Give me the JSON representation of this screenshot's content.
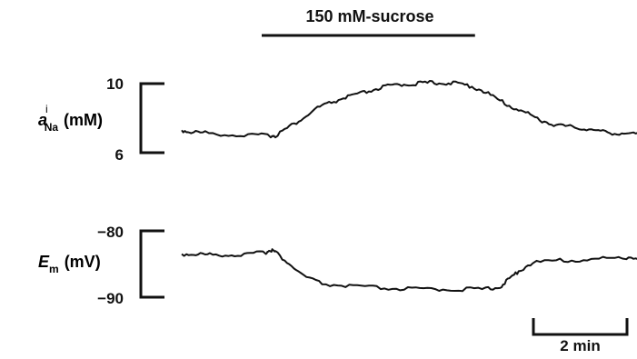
{
  "chart_data": [
    {
      "type": "line",
      "stimulus_label": "150 mM-sucrose",
      "stimulus_window_min": [
        2.0,
        6.5
      ],
      "ylabel": {
        "symbol": "a",
        "superscript": "i",
        "subscript": "Na",
        "unit": "(mM)"
      },
      "ylim": [
        6,
        10
      ],
      "yticks": [
        "10",
        "6"
      ],
      "series": [
        {
          "x": [
            0,
            0.2,
            0.5,
            1.0,
            1.5,
            1.9,
            2.0,
            2.3,
            2.6,
            2.9,
            3.2,
            3.5,
            3.8,
            4.1,
            4.4,
            4.7,
            5.0,
            5.3,
            5.6,
            5.9,
            6.2,
            6.5,
            6.8,
            7.1,
            7.4,
            7.7,
            8.0,
            8.3,
            8.6,
            8.9,
            9.2,
            9.5,
            9.8
          ],
          "y": [
            7.3,
            7.2,
            7.15,
            7.05,
            7.0,
            7.0,
            7.0,
            7.5,
            8.0,
            8.6,
            8.9,
            9.2,
            9.4,
            9.65,
            9.85,
            9.95,
            10.0,
            10.05,
            10.05,
            10.0,
            9.85,
            9.5,
            9.0,
            8.6,
            8.25,
            7.85,
            7.6,
            7.5,
            7.4,
            7.25,
            7.15,
            7.1,
            7.05
          ]
        }
      ]
    },
    {
      "type": "line",
      "ylabel": {
        "symbol": "E",
        "subscript": "m",
        "unit": "(mV)"
      },
      "ylim": [
        -90,
        -80
      ],
      "yticks": [
        "−80",
        "−90"
      ],
      "series": [
        {
          "x": [
            0,
            0.3,
            0.6,
            1.0,
            1.4,
            1.8,
            1.9,
            2.0,
            2.3,
            2.6,
            3.0,
            3.5,
            4.0,
            4.5,
            5.0,
            5.5,
            6.0,
            6.5,
            6.8,
            7.0,
            7.2,
            7.5,
            8.0,
            8.5,
            9.0,
            9.5,
            9.8
          ],
          "y": [
            -83.5,
            -83.5,
            -83.6,
            -83.6,
            -83.6,
            -83.2,
            -82.8,
            -83.2,
            -85.0,
            -86.8,
            -88.0,
            -88.3,
            -88.5,
            -88.7,
            -88.8,
            -88.8,
            -88.8,
            -88.8,
            -88.4,
            -87.3,
            -86.0,
            -84.8,
            -84.5,
            -84.4,
            -84.2,
            -84.0,
            -84.0
          ]
        }
      ]
    }
  ],
  "scale_bar": {
    "label": "2 min",
    "minutes": 2
  }
}
